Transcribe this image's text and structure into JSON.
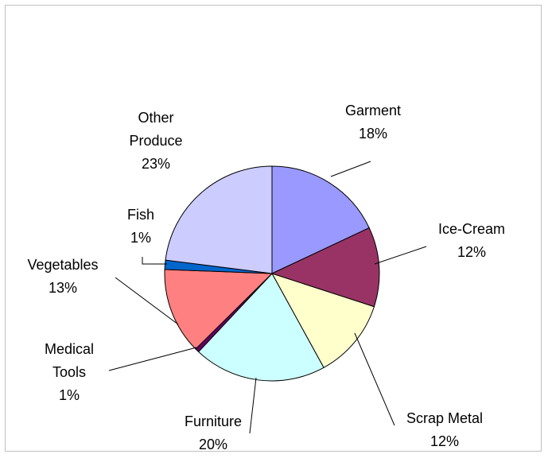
{
  "chart_data": {
    "type": "pie",
    "title": "",
    "slices": [
      {
        "label_lines": [
          "Garment"
        ],
        "percent_label": "18%",
        "value": 18,
        "color": "#9999ff"
      },
      {
        "label_lines": [
          "Ice-Cream"
        ],
        "percent_label": "12%",
        "value": 12,
        "color": "#993366"
      },
      {
        "label_lines": [
          "Scrap Metal"
        ],
        "percent_label": "12%",
        "value": 12,
        "color": "#ffffcc"
      },
      {
        "label_lines": [
          "Furniture"
        ],
        "percent_label": "20%",
        "value": 20,
        "color": "#ccffff"
      },
      {
        "label_lines": [
          "Medical",
          "Tools"
        ],
        "percent_label": "1%",
        "value": 0.6,
        "color": "#660066"
      },
      {
        "label_lines": [
          "Vegetables"
        ],
        "percent_label": "13%",
        "value": 13,
        "color": "#ff8080"
      },
      {
        "label_lines": [
          "Fish"
        ],
        "percent_label": "1%",
        "value": 1.4,
        "color": "#0066cc"
      },
      {
        "label_lines": [
          "Other",
          "Produce"
        ],
        "percent_label": "23%",
        "value": 23,
        "color": "#ccccff"
      }
    ],
    "start_angle_deg": 0,
    "direction": "clockwise",
    "legend": "none"
  }
}
